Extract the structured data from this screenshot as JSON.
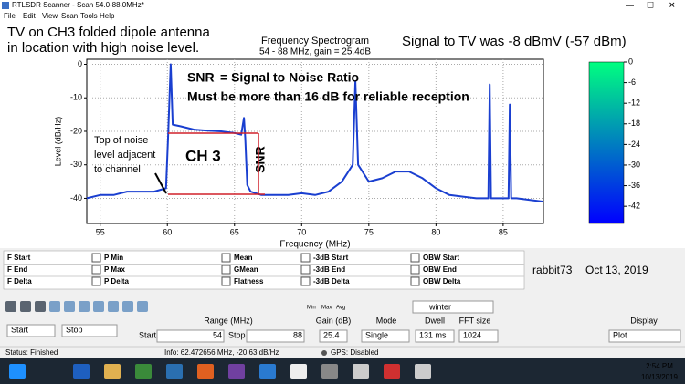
{
  "window": {
    "title": "RTLSDR Scanner - Scan 54.0-88.0MHz*",
    "menu": [
      "File",
      "Edit",
      "View",
      "Scan",
      "Tools",
      "Help"
    ]
  },
  "notes": {
    "top_left": [
      "TV on CH3 folded dipole antenna",
      "in location with high noise level."
    ],
    "top_right": "Signal to TV was -8 dBmV (-57 dBm)",
    "snr_word": "SNR",
    "snr_def": "= Signal to Noise Ratio",
    "snr_req": "Must be more than 16 dB for reliable reception",
    "channel": "CH 3",
    "snr_vertical": "SNR",
    "noise_label": [
      "Top of noise",
      "level adjacent",
      "to channel"
    ],
    "signature": "rabbit73",
    "date": "Oct 13, 2019"
  },
  "chart_data": {
    "type": "line",
    "title": "Frequency Spectrogram",
    "subtitle": "54 - 88 MHz, gain = 25.4dB",
    "x_label": "Frequency (MHz)",
    "y_label": "Level (dB/Hz)",
    "xlim": [
      54,
      88
    ],
    "ylim": [
      -47.5,
      1.5
    ],
    "xticks": [
      55,
      60,
      65,
      70,
      75,
      80,
      85
    ],
    "yticks": [
      0,
      -10,
      -20,
      -30,
      -40
    ],
    "grid": true,
    "color": "#1a3fd0",
    "x": [
      54,
      55,
      56,
      57,
      58,
      59,
      59.9,
      60.05,
      60.25,
      60.4,
      61,
      62,
      63,
      64,
      65,
      65.5,
      65.7,
      65.8,
      65.95,
      66.2,
      67,
      68,
      69,
      70,
      71,
      72,
      73,
      73.8,
      74,
      74.2,
      75,
      76,
      77,
      78,
      79,
      80,
      81,
      82,
      83,
      83.9,
      84,
      84.1,
      85,
      85.4,
      85.5,
      85.6,
      86,
      87,
      88
    ],
    "values": [
      -40,
      -39,
      -39,
      -38,
      -38,
      -38,
      -37,
      -22,
      0,
      -18,
      -18.5,
      -19.5,
      -19.8,
      -20,
      -20.5,
      -21,
      -16,
      -22,
      -36,
      -38,
      -39,
      -39,
      -39,
      -38.5,
      -39,
      -38,
      -35,
      -30,
      -5,
      -30,
      -35,
      -34,
      -32,
      -32,
      -34,
      -37,
      -39,
      -39.5,
      -40,
      -40,
      -6,
      -40,
      -40,
      -40,
      -12,
      -40,
      -40,
      -40.5,
      -41
    ],
    "colorbar": {
      "lim": [
        -47,
        0
      ],
      "ticks": [
        0,
        -6,
        -12,
        -18,
        -24,
        -30,
        -36,
        -42
      ],
      "colors": [
        "#00ff80",
        "#0000ff"
      ]
    }
  },
  "measurements": [
    [
      "F Start",
      "F End",
      "F Delta"
    ],
    [
      "P Min",
      "P Max",
      "P Delta"
    ],
    [
      "Mean",
      "GMean",
      "Flatness"
    ],
    [
      "-3dB Start",
      "-3dB End",
      "-3dB Delta"
    ],
    [
      "OBW Start",
      "OBW End",
      "OBW Delta"
    ]
  ],
  "toolbar": {
    "tools": [
      "Min",
      "Max",
      "Avg"
    ],
    "colormap": "winter"
  },
  "controls": {
    "start_button": "Start",
    "stop_button": "Stop",
    "range_label": "Range (MHz)",
    "start_label": "Start",
    "start_value": 54,
    "stop_label": "Stop",
    "stop_value": 88,
    "gain_label": "Gain (dB)",
    "gain_value": 25.4,
    "mode_label": "Mode",
    "mode_value": "Single",
    "dwell_label": "Dwell",
    "dwell_value": "131 ms",
    "fft_label": "FFT size",
    "fft_value": "1024",
    "display_label": "Display",
    "display_value": "Plot"
  },
  "status": {
    "state": "Status: Finished",
    "info": "Info: 62.472656 MHz, -20.63 dB/Hz",
    "gps": "GPS: Disabled"
  },
  "taskbar": {
    "time": "2:54 PM",
    "date": "10/13/2019"
  }
}
